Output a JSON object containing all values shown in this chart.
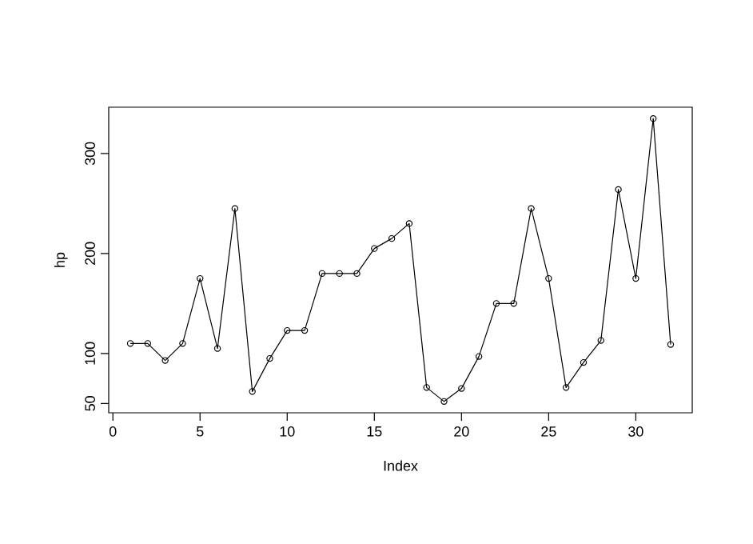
{
  "chart_data": {
    "type": "line",
    "xlabel": "Index",
    "ylabel": "hp",
    "x": [
      1,
      2,
      3,
      4,
      5,
      6,
      7,
      8,
      9,
      10,
      11,
      12,
      13,
      14,
      15,
      16,
      17,
      18,
      19,
      20,
      21,
      22,
      23,
      24,
      25,
      26,
      27,
      28,
      29,
      30,
      31,
      32
    ],
    "values": [
      110,
      110,
      93,
      110,
      175,
      105,
      245,
      62,
      95,
      123,
      123,
      180,
      180,
      180,
      205,
      215,
      230,
      66,
      52,
      65,
      97,
      150,
      150,
      245,
      175,
      66,
      91,
      113,
      264,
      175,
      335,
      109
    ],
    "color": "#000000",
    "marker": "circle",
    "xlim": [
      -0.24,
      33.24
    ],
    "ylim": [
      40.68,
      346.32
    ],
    "xticks": [
      0,
      5,
      10,
      15,
      20,
      25,
      30
    ],
    "yticks": [
      50,
      100,
      200,
      300
    ]
  }
}
